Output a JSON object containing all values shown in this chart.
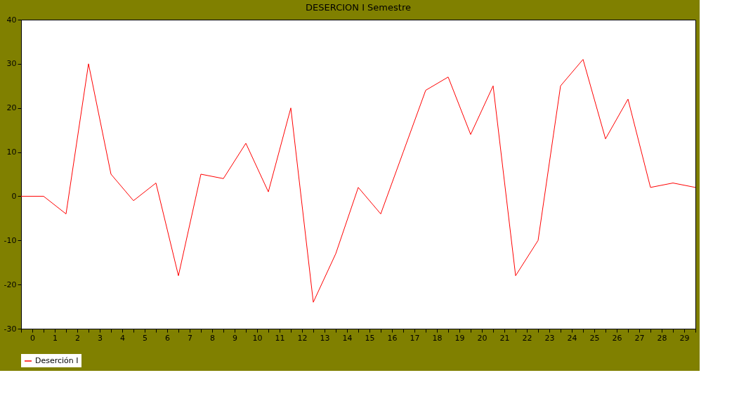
{
  "chart_data": {
    "type": "line",
    "title": "DESERCION I Semestre",
    "x": [
      -0.5,
      0.5,
      1.5,
      2.5,
      3.5,
      4.5,
      5.5,
      6.5,
      7.5,
      8.5,
      9.5,
      10.5,
      11.5,
      12.5,
      13.5,
      14.5,
      15.5,
      16.5,
      17.5,
      18.5,
      19.5,
      20.5,
      21.5,
      22.5,
      23.5,
      24.5,
      25.5,
      26.5,
      27.5,
      28.5,
      29.5
    ],
    "series": [
      {
        "name": "Deserción I",
        "color": "#ff0000",
        "values": [
          0,
          0,
          -4,
          30,
          5,
          -1,
          3,
          -18,
          5,
          4,
          12,
          1,
          20,
          -24,
          -13,
          2,
          -4,
          10,
          24,
          27,
          14,
          25,
          -18,
          -10,
          25,
          31,
          13,
          22,
          2,
          3,
          2
        ]
      }
    ],
    "xlim": [
      -0.5,
      29.5
    ],
    "xticks": [
      0,
      1,
      2,
      3,
      4,
      5,
      6,
      7,
      8,
      9,
      10,
      11,
      12,
      13,
      14,
      15,
      16,
      17,
      18,
      19,
      20,
      21,
      22,
      23,
      24,
      25,
      26,
      27,
      28,
      29,
      {
        "value": -0.5,
        "label": null
      },
      {
        "value": 0.5,
        "label": null
      },
      {
        "value": 1.5,
        "label": null
      },
      {
        "value": 2.5,
        "label": null
      },
      {
        "value": 3.5,
        "label": null
      },
      {
        "value": 4.5,
        "label": null
      },
      {
        "value": 5.5,
        "label": null
      },
      {
        "value": 6.5,
        "label": null
      },
      {
        "value": 7.5,
        "label": null
      },
      {
        "value": 8.5,
        "label": null
      },
      {
        "value": 9.5,
        "label": null
      },
      {
        "value": 10.5,
        "label": null
      },
      {
        "value": 11.5,
        "label": null
      },
      {
        "value": 12.5,
        "label": null
      },
      {
        "value": 13.5,
        "label": null
      },
      {
        "value": 14.5,
        "label": null
      },
      {
        "value": 15.5,
        "label": null
      },
      {
        "value": 16.5,
        "label": null
      },
      {
        "value": 17.5,
        "label": null
      },
      {
        "value": 18.5,
        "label": null
      },
      {
        "value": 19.5,
        "label": null
      },
      {
        "value": 20.5,
        "label": null
      },
      {
        "value": 21.5,
        "label": null
      },
      {
        "value": 22.5,
        "label": null
      },
      {
        "value": 23.5,
        "label": null
      },
      {
        "value": 24.5,
        "label": null
      },
      {
        "value": 25.5,
        "label": null
      },
      {
        "value": 26.5,
        "label": null
      },
      {
        "value": 27.5,
        "label": null
      },
      {
        "value": 28.5,
        "label": null
      },
      {
        "value": 29.5,
        "label": null
      }
    ],
    "ylim": [
      -30,
      40
    ],
    "yticks": [
      -30,
      -20,
      -10,
      0,
      10,
      20,
      30,
      40
    ],
    "grid": false,
    "legend": "bottom",
    "marker": "none",
    "line_style": "solid"
  }
}
